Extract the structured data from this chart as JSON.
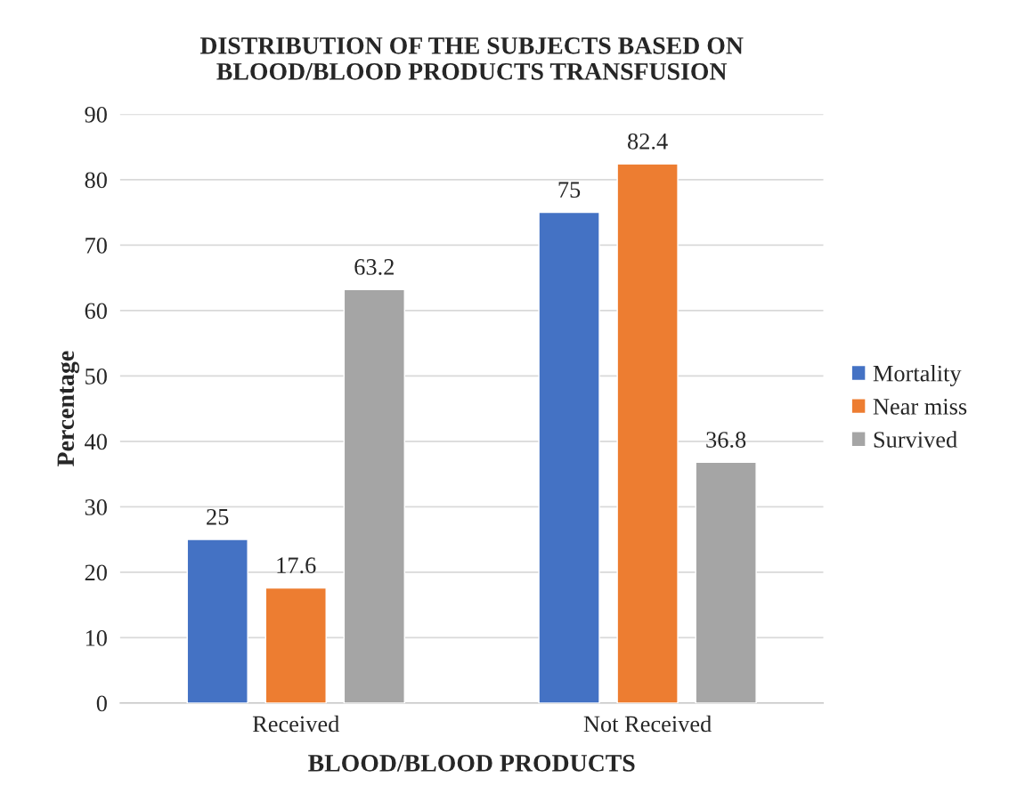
{
  "chart_data": {
    "type": "bar",
    "title": "DISTRIBUTION OF THE SUBJECTS BASED ON\nBLOOD/BLOOD PRODUCTS TRANSFUSION",
    "xlabel": "BLOOD/BLOOD PRODUCTS",
    "ylabel": "Percentage",
    "categories": [
      "Received",
      "Not Received"
    ],
    "series": [
      {
        "name": "Mortality",
        "color": "#4472c4",
        "values": [
          25,
          75
        ]
      },
      {
        "name": "Near miss",
        "color": "#ed7d31",
        "values": [
          17.6,
          82.4
        ]
      },
      {
        "name": "Survived",
        "color": "#a5a5a5",
        "values": [
          63.2,
          36.8
        ]
      }
    ],
    "ylim": [
      0,
      90
    ],
    "yticks": [
      0,
      10,
      20,
      30,
      40,
      50,
      60,
      70,
      80,
      90
    ],
    "grid": "y",
    "legend": "right",
    "data_labels": true
  }
}
